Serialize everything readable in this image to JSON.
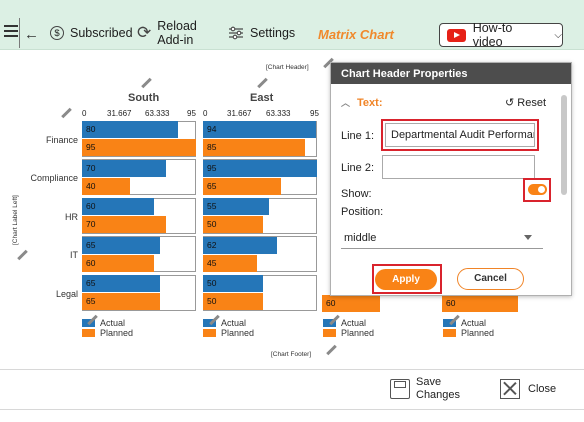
{
  "toolbar": {
    "subscribed_label": "Subscribed",
    "reload_line1": "Reload",
    "reload_line2": "Add-in",
    "settings_label": "Settings",
    "app_title": "Matrix Chart",
    "howto_label": "How-to video"
  },
  "chart": {
    "header_placeholder": "[Chart Header]",
    "footer_placeholder": "[Chart Footer]",
    "label_left_placeholder": "[Chart Label Left]",
    "panels": [
      {
        "title": "South",
        "ticks": [
          "0",
          "31.667",
          "63.333",
          "95"
        ]
      },
      {
        "title": "East",
        "ticks": [
          "0",
          "31.667",
          "63.333",
          "95"
        ]
      }
    ],
    "legend_actual": "Actual",
    "legend_planned": "Planned",
    "categories": [
      "Finance",
      "Compliance",
      "HR",
      "IT",
      "Legal"
    ]
  },
  "chart_data": {
    "type": "bar",
    "categories": [
      "Finance",
      "Compliance",
      "HR",
      "IT",
      "Legal"
    ],
    "xlim": [
      0,
      95
    ],
    "panels": [
      {
        "name": "South",
        "series": [
          {
            "name": "Actual",
            "values": [
              80,
              70,
              60,
              65,
              65
            ]
          },
          {
            "name": "Planned",
            "values": [
              95,
              40,
              70,
              60,
              65
            ]
          }
        ]
      },
      {
        "name": "East",
        "series": [
          {
            "name": "Actual",
            "values": [
              94,
              95,
              55,
              62,
              50
            ]
          },
          {
            "name": "Planned",
            "values": [
              85,
              65,
              50,
              45,
              50
            ]
          }
        ]
      }
    ],
    "partial_visible_values": [
      "60",
      "60"
    ],
    "colors": {
      "Actual": "#2576b8",
      "Planned": "#f98316"
    }
  },
  "dialog": {
    "title": "Chart Header Properties",
    "section": "Text:",
    "reset_label": "Reset",
    "line1_label": "Line 1:",
    "line1_value": "Departmental Audit Performance",
    "line2_label": "Line 2:",
    "line2_value": "",
    "show_label": "Show:",
    "show_enabled": true,
    "position_label": "Position:",
    "position_value": "middle",
    "apply_label": "Apply",
    "cancel_label": "Cancel"
  },
  "bottom": {
    "save_line1": "Save",
    "save_line2": "Changes",
    "close_label": "Close"
  }
}
